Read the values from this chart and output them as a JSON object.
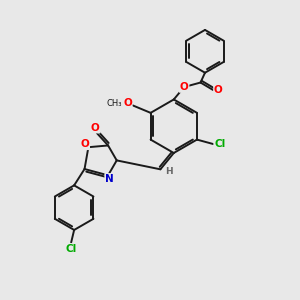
{
  "bg_color": "#e8e8e8",
  "bond_color": "#1a1a1a",
  "line_width": 1.4,
  "dbo": 0.07,
  "atom_colors": {
    "O": "#ff0000",
    "N": "#0000cc",
    "Cl": "#00aa00",
    "H": "#666666",
    "C": "#1a1a1a"
  },
  "font_size": 7.5
}
